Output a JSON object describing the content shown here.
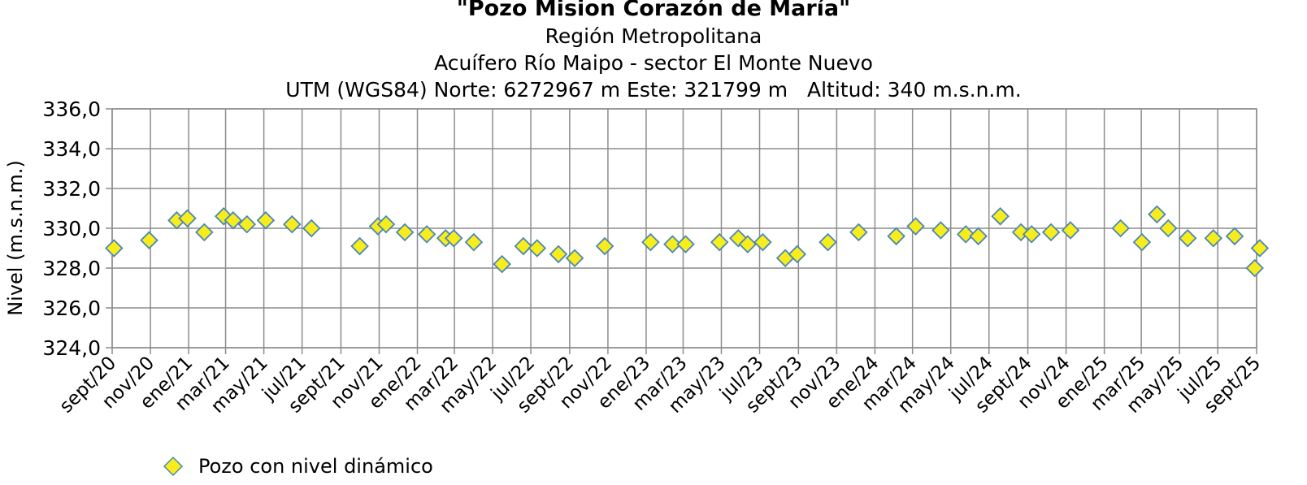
{
  "chart_data": {
    "type": "scatter",
    "title": "\"Pozo Mision Corazón de María\"",
    "subtitles": [
      "Región Metropolitana",
      "Acuífero Río Maipo - sector El Monte Nuevo",
      "UTM (WGS84) Norte: 6272967 m Este: 321799 m   Altitud: 340 m.s.n.m."
    ],
    "ylabel": "Nivel (m.s.n.m.)",
    "xlabel": "",
    "ylim": [
      324.0,
      336.0
    ],
    "y_ticks": [
      "324,0",
      "326,0",
      "328,0",
      "330,0",
      "332,0",
      "334,0",
      "336,0"
    ],
    "x_range": [
      "2020-09-01",
      "2025-09-01"
    ],
    "x_ticks": [
      {
        "date": "2020-09-01",
        "label": "sept/20"
      },
      {
        "date": "2020-11-01",
        "label": "nov/20"
      },
      {
        "date": "2021-01-01",
        "label": "ene/21"
      },
      {
        "date": "2021-03-01",
        "label": "mar/21"
      },
      {
        "date": "2021-05-01",
        "label": "may/21"
      },
      {
        "date": "2021-07-01",
        "label": "jul/21"
      },
      {
        "date": "2021-09-01",
        "label": "sept/21"
      },
      {
        "date": "2021-11-01",
        "label": "nov/21"
      },
      {
        "date": "2022-01-01",
        "label": "ene/22"
      },
      {
        "date": "2022-03-01",
        "label": "mar/22"
      },
      {
        "date": "2022-05-01",
        "label": "may/22"
      },
      {
        "date": "2022-07-01",
        "label": "jul/22"
      },
      {
        "date": "2022-09-01",
        "label": "sept/22"
      },
      {
        "date": "2022-11-01",
        "label": "nov/22"
      },
      {
        "date": "2023-01-01",
        "label": "ene/23"
      },
      {
        "date": "2023-03-01",
        "label": "mar/23"
      },
      {
        "date": "2023-05-01",
        "label": "may/23"
      },
      {
        "date": "2023-07-01",
        "label": "jul/23"
      },
      {
        "date": "2023-09-01",
        "label": "sept/23"
      },
      {
        "date": "2023-11-01",
        "label": "nov/23"
      },
      {
        "date": "2024-01-01",
        "label": "ene/24"
      },
      {
        "date": "2024-03-01",
        "label": "mar/24"
      },
      {
        "date": "2024-05-01",
        "label": "may/24"
      },
      {
        "date": "2024-07-01",
        "label": "jul/24"
      },
      {
        "date": "2024-09-01",
        "label": "sept/24"
      },
      {
        "date": "2024-11-01",
        "label": "nov/24"
      },
      {
        "date": "2025-01-01",
        "label": "ene/25"
      },
      {
        "date": "2025-03-01",
        "label": "mar/25"
      },
      {
        "date": "2025-05-01",
        "label": "may/25"
      },
      {
        "date": "2025-07-01",
        "label": "jul/25"
      },
      {
        "date": "2025-09-01",
        "label": "sept/25"
      }
    ],
    "grid": true,
    "legend_position": "bottom-left",
    "series": [
      {
        "name": "Pozo con nivel dinámico",
        "marker": "diamond",
        "color": "#f7ec1c",
        "edge_color": "#4a86b8",
        "points": [
          {
            "x": "2020-09-04",
            "y": 329.0
          },
          {
            "x": "2020-10-30",
            "y": 329.4
          },
          {
            "x": "2020-12-13",
            "y": 330.4
          },
          {
            "x": "2020-12-30",
            "y": 330.5
          },
          {
            "x": "2021-01-26",
            "y": 329.8
          },
          {
            "x": "2021-02-26",
            "y": 330.6
          },
          {
            "x": "2021-03-13",
            "y": 330.4
          },
          {
            "x": "2021-04-04",
            "y": 330.2
          },
          {
            "x": "2021-05-04",
            "y": 330.4
          },
          {
            "x": "2021-06-15",
            "y": 330.2
          },
          {
            "x": "2021-07-16",
            "y": 330.0
          },
          {
            "x": "2021-10-01",
            "y": 329.1
          },
          {
            "x": "2021-10-30",
            "y": 330.1
          },
          {
            "x": "2021-11-12",
            "y": 330.2
          },
          {
            "x": "2021-12-12",
            "y": 329.8
          },
          {
            "x": "2022-01-16",
            "y": 329.7
          },
          {
            "x": "2022-02-15",
            "y": 329.5
          },
          {
            "x": "2022-02-28",
            "y": 329.5
          },
          {
            "x": "2022-04-01",
            "y": 329.3
          },
          {
            "x": "2022-05-16",
            "y": 328.2
          },
          {
            "x": "2022-06-19",
            "y": 329.1
          },
          {
            "x": "2022-07-11",
            "y": 329.0
          },
          {
            "x": "2022-08-14",
            "y": 328.7
          },
          {
            "x": "2022-09-09",
            "y": 328.5
          },
          {
            "x": "2022-10-27",
            "y": 329.1
          },
          {
            "x": "2023-01-08",
            "y": 329.3
          },
          {
            "x": "2023-02-12",
            "y": 329.2
          },
          {
            "x": "2023-03-05",
            "y": 329.2
          },
          {
            "x": "2023-04-28",
            "y": 329.3
          },
          {
            "x": "2023-05-28",
            "y": 329.5
          },
          {
            "x": "2023-06-12",
            "y": 329.2
          },
          {
            "x": "2023-07-06",
            "y": 329.3
          },
          {
            "x": "2023-08-11",
            "y": 328.5
          },
          {
            "x": "2023-08-30",
            "y": 328.7
          },
          {
            "x": "2023-10-18",
            "y": 329.3
          },
          {
            "x": "2023-12-06",
            "y": 329.8
          },
          {
            "x": "2024-02-04",
            "y": 329.6
          },
          {
            "x": "2024-03-06",
            "y": 330.1
          },
          {
            "x": "2024-04-15",
            "y": 329.9
          },
          {
            "x": "2024-05-25",
            "y": 329.7
          },
          {
            "x": "2024-06-14",
            "y": 329.6
          },
          {
            "x": "2024-07-19",
            "y": 330.6
          },
          {
            "x": "2024-08-21",
            "y": 329.8
          },
          {
            "x": "2024-09-07",
            "y": 329.7
          },
          {
            "x": "2024-10-08",
            "y": 329.8
          },
          {
            "x": "2024-11-08",
            "y": 329.9
          },
          {
            "x": "2025-01-27",
            "y": 330.0
          },
          {
            "x": "2025-03-02",
            "y": 329.3
          },
          {
            "x": "2025-03-26",
            "y": 330.7
          },
          {
            "x": "2025-04-13",
            "y": 330.0
          },
          {
            "x": "2025-05-14",
            "y": 329.5
          },
          {
            "x": "2025-06-24",
            "y": 329.5
          },
          {
            "x": "2025-07-28",
            "y": 329.6
          },
          {
            "x": "2025-08-29",
            "y": 328.0
          },
          {
            "x": "2025-09-06",
            "y": 329.0
          }
        ]
      }
    ]
  }
}
